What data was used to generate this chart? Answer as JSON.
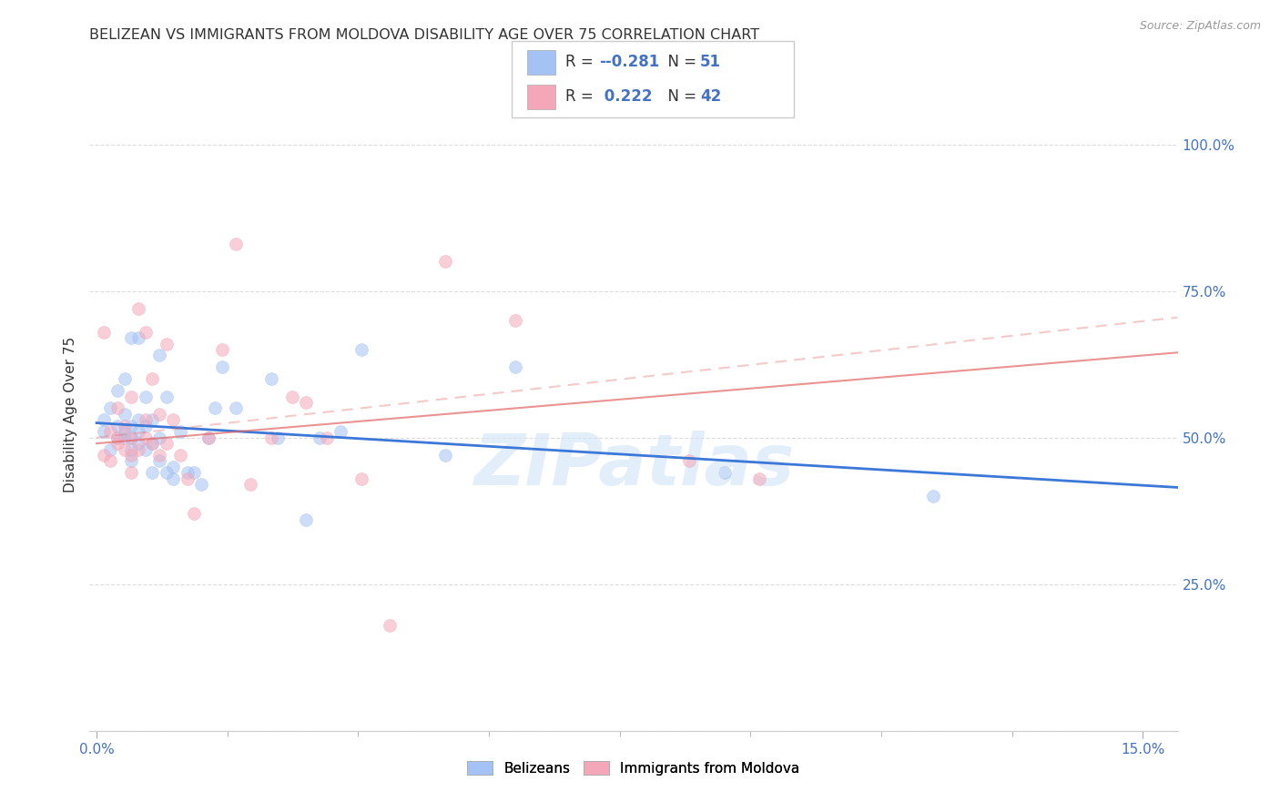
{
  "title": "BELIZEAN VS IMMIGRANTS FROM MOLDOVA DISABILITY AGE OVER 75 CORRELATION CHART",
  "source": "Source: ZipAtlas.com",
  "ylabel": "Disability Age Over 75",
  "xlim": [
    -0.001,
    0.155
  ],
  "ylim": [
    0.0,
    1.08
  ],
  "xtick_positions": [
    0.0,
    0.15
  ],
  "xticklabels": [
    "0.0%",
    "15.0%"
  ],
  "ytick_positions": [
    0.0,
    0.25,
    0.5,
    0.75,
    1.0
  ],
  "yticklabels_right": [
    "",
    "25.0%",
    "50.0%",
    "75.0%",
    "100.0%"
  ],
  "belizean_color": "#a4c2f4",
  "moldova_color": "#f4a7b9",
  "blue_line_color": "#3c78d8",
  "pink_line_color": "#e06666",
  "pink_dash_color": "#e06666",
  "watermark": "ZIPatlas",
  "legend_R1": "-0.281",
  "legend_N1": "51",
  "legend_R2": "0.222",
  "legend_N2": "42",
  "belizean_points_x": [
    0.001,
    0.001,
    0.002,
    0.002,
    0.003,
    0.003,
    0.003,
    0.004,
    0.004,
    0.004,
    0.004,
    0.005,
    0.005,
    0.005,
    0.005,
    0.005,
    0.006,
    0.006,
    0.006,
    0.006,
    0.007,
    0.007,
    0.007,
    0.008,
    0.008,
    0.008,
    0.009,
    0.009,
    0.009,
    0.01,
    0.01,
    0.011,
    0.011,
    0.012,
    0.013,
    0.014,
    0.015,
    0.016,
    0.017,
    0.018,
    0.02,
    0.025,
    0.026,
    0.03,
    0.032,
    0.035,
    0.038,
    0.05,
    0.06,
    0.09,
    0.12
  ],
  "belizean_points_y": [
    0.51,
    0.53,
    0.48,
    0.55,
    0.5,
    0.52,
    0.58,
    0.5,
    0.51,
    0.54,
    0.6,
    0.46,
    0.48,
    0.5,
    0.52,
    0.67,
    0.49,
    0.51,
    0.53,
    0.67,
    0.48,
    0.52,
    0.57,
    0.44,
    0.49,
    0.53,
    0.46,
    0.5,
    0.64,
    0.44,
    0.57,
    0.43,
    0.45,
    0.51,
    0.44,
    0.44,
    0.42,
    0.5,
    0.55,
    0.62,
    0.55,
    0.6,
    0.5,
    0.36,
    0.5,
    0.51,
    0.65,
    0.47,
    0.62,
    0.44,
    0.4
  ],
  "moldova_points_x": [
    0.001,
    0.001,
    0.002,
    0.002,
    0.003,
    0.003,
    0.003,
    0.004,
    0.004,
    0.005,
    0.005,
    0.005,
    0.005,
    0.006,
    0.006,
    0.007,
    0.007,
    0.007,
    0.008,
    0.008,
    0.009,
    0.009,
    0.01,
    0.01,
    0.011,
    0.012,
    0.013,
    0.014,
    0.016,
    0.018,
    0.02,
    0.022,
    0.025,
    0.028,
    0.033,
    0.038,
    0.042,
    0.05,
    0.06,
    0.085,
    0.095,
    0.03
  ],
  "moldova_points_y": [
    0.47,
    0.68,
    0.46,
    0.51,
    0.49,
    0.5,
    0.55,
    0.48,
    0.52,
    0.44,
    0.47,
    0.5,
    0.57,
    0.48,
    0.72,
    0.5,
    0.53,
    0.68,
    0.49,
    0.6,
    0.47,
    0.54,
    0.49,
    0.66,
    0.53,
    0.47,
    0.43,
    0.37,
    0.5,
    0.65,
    0.83,
    0.42,
    0.5,
    0.57,
    0.5,
    0.43,
    0.18,
    0.8,
    0.7,
    0.46,
    0.43,
    0.56
  ],
  "blue_line_x0": 0.0,
  "blue_line_x1": 0.155,
  "blue_line_y0": 0.525,
  "blue_line_y1": 0.415,
  "pink_line_x0": 0.0,
  "pink_line_x1": 0.155,
  "pink_line_y0": 0.49,
  "pink_line_y1": 0.645,
  "grid_color": "#dddddd",
  "background_color": "#ffffff",
  "title_fontsize": 11.5,
  "label_fontsize": 11,
  "tick_fontsize": 11,
  "legend_fontsize": 12,
  "marker_size": 100,
  "alpha": 0.55,
  "xtick_minor_positions": [
    0.01875,
    0.0375,
    0.05625,
    0.075,
    0.09375,
    0.1125,
    0.13125
  ]
}
